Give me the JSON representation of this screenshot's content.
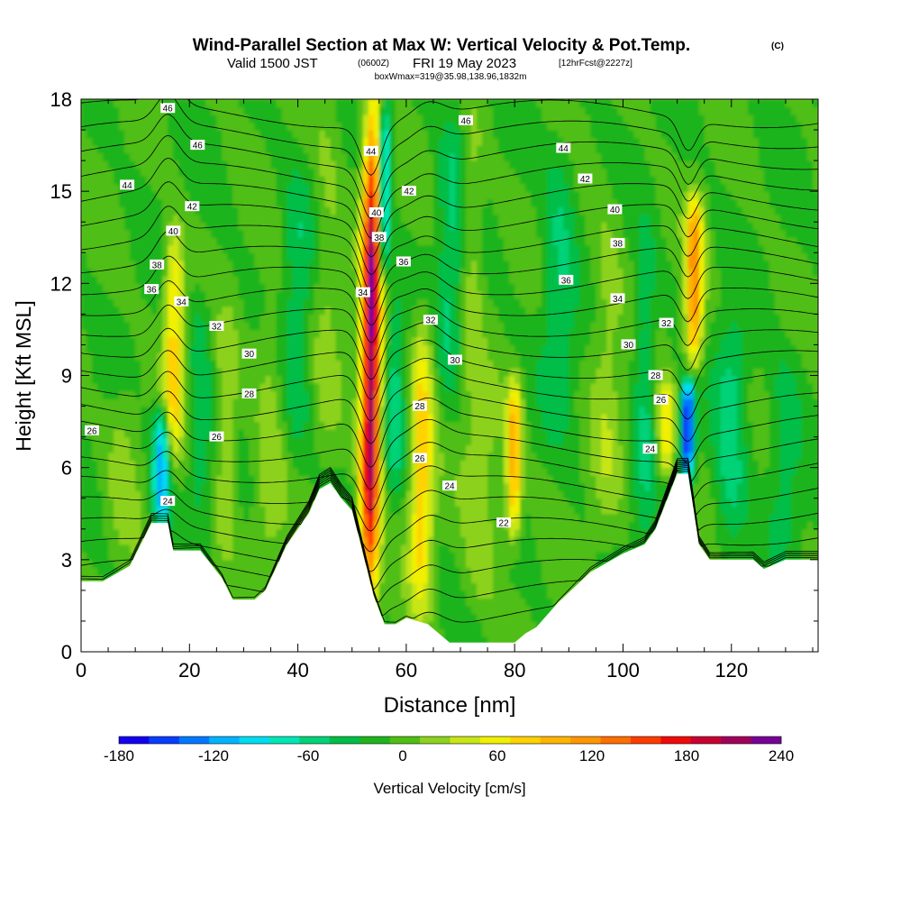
{
  "chart_data": {
    "type": "heatmap",
    "title": "Wind-Parallel Section at Max W: Vertical Velocity & Pot.Temp.",
    "title_suffix": "(C)",
    "subtitle": {
      "valid": "Valid 1500 JST",
      "utc": "(0600Z)",
      "date": "FRI 19 May 2023",
      "forecast": "[12hrFcst@2227z]"
    },
    "box_info": "boxWmax=319@35.98,138.96,1832m",
    "xlabel": "Distance [nm]",
    "ylabel": "Height [Kft MSL]",
    "xlim": [
      0,
      136
    ],
    "ylim": [
      0,
      18
    ],
    "x_ticks": [
      "0",
      "20",
      "40",
      "60",
      "80",
      "100",
      "120"
    ],
    "y_ticks": [
      "0",
      "3",
      "6",
      "9",
      "12",
      "15",
      "18"
    ],
    "colorbar": {
      "label": "Vertical Velocity [cm/s]",
      "ticks": [
        "-180",
        "-120",
        "-60",
        "0",
        "60",
        "120",
        "180",
        "240"
      ],
      "min": -180,
      "max": 240,
      "step": 20,
      "colors": [
        "#1400f0",
        "#0a3cff",
        "#0078ff",
        "#00b4ff",
        "#00dcf0",
        "#00e6b4",
        "#00d278",
        "#00be46",
        "#1eb41e",
        "#50be14",
        "#8cd21e",
        "#c8e614",
        "#f0f000",
        "#ffd200",
        "#ffb400",
        "#ff9600",
        "#ff6e00",
        "#ff3c00",
        "#f00a0a",
        "#c80032",
        "#a0005a",
        "#780096"
      ]
    },
    "terrain_kft": [
      [
        0,
        2.3
      ],
      [
        4,
        2.3
      ],
      [
        9,
        2.8
      ],
      [
        13,
        4.2
      ],
      [
        16,
        4.2
      ],
      [
        17,
        3.3
      ],
      [
        22,
        3.3
      ],
      [
        26,
        2.4
      ],
      [
        28,
        1.7
      ],
      [
        32,
        1.7
      ],
      [
        34,
        2.0
      ],
      [
        38,
        3.5
      ],
      [
        42,
        4.5
      ],
      [
        44,
        5.3
      ],
      [
        46,
        5.5
      ],
      [
        48,
        5.0
      ],
      [
        50,
        4.6
      ],
      [
        52,
        3.2
      ],
      [
        54,
        1.8
      ],
      [
        56,
        0.9
      ],
      [
        58,
        0.9
      ],
      [
        60,
        1.1
      ],
      [
        62,
        1.0
      ],
      [
        64,
        0.9
      ],
      [
        66,
        0.6
      ],
      [
        68,
        0.3
      ],
      [
        72,
        0.3
      ],
      [
        76,
        0.3
      ],
      [
        80,
        0.3
      ],
      [
        82,
        0.6
      ],
      [
        84,
        0.8
      ],
      [
        88,
        1.6
      ],
      [
        94,
        2.6
      ],
      [
        100,
        3.2
      ],
      [
        104,
        3.5
      ],
      [
        106,
        4.0
      ],
      [
        110,
        5.8
      ],
      [
        112,
        5.8
      ],
      [
        114,
        3.5
      ],
      [
        116,
        3.0
      ],
      [
        124,
        3.0
      ],
      [
        126,
        2.7
      ],
      [
        130,
        3.0
      ],
      [
        136,
        3.0
      ]
    ],
    "velocity_features": [
      {
        "x": 53.5,
        "zmin": 1.5,
        "zmax": 18,
        "peak_cm_s": 240,
        "width_nm": 1.8
      },
      {
        "x": 55.5,
        "zmin": 12,
        "zmax": 18,
        "peak_cm_s": -130,
        "width_nm": 1.2
      },
      {
        "x": 17,
        "zmin": 6,
        "zmax": 14,
        "peak_cm_s": 90,
        "width_nm": 1.8
      },
      {
        "x": 15,
        "zmin": 4,
        "zmax": 8,
        "peak_cm_s": -120,
        "width_nm": 1.6
      },
      {
        "x": 63,
        "zmin": 1,
        "zmax": 11,
        "peak_cm_s": 90,
        "width_nm": 2.2
      },
      {
        "x": 80,
        "zmin": 3.5,
        "zmax": 9,
        "peak_cm_s": 110,
        "width_nm": 1.4
      },
      {
        "x": 113,
        "zmin": 9,
        "zmax": 15,
        "peak_cm_s": 130,
        "width_nm": 1.6
      },
      {
        "x": 112,
        "zmin": 5.5,
        "zmax": 9,
        "peak_cm_s": -170,
        "width_nm": 1.2
      },
      {
        "x": 108,
        "zmin": 5.5,
        "zmax": 9,
        "peak_cm_s": 80,
        "width_nm": 1.5
      },
      {
        "x": 27,
        "zmin": 3,
        "zmax": 11,
        "peak_cm_s": 40,
        "width_nm": 2.0
      },
      {
        "x": 35,
        "zmin": 2,
        "zmax": 12,
        "peak_cm_s": 30,
        "width_nm": 3.0
      },
      {
        "x": 74,
        "zmin": 1,
        "zmax": 9,
        "peak_cm_s": 35,
        "width_nm": 3.5
      },
      {
        "x": 97,
        "zmin": 3,
        "zmax": 15,
        "peak_cm_s": 30,
        "width_nm": 3.0
      },
      {
        "x": 8,
        "zmin": 3,
        "zmax": 9,
        "peak_cm_s": 25,
        "width_nm": 3.0
      },
      {
        "x": 45,
        "zmin": 6,
        "zmax": 18,
        "peak_cm_s": 25,
        "width_nm": 3.0
      },
      {
        "x": 72,
        "zmin": 8,
        "zmax": 18,
        "peak_cm_s": 30,
        "width_nm": 2.0
      },
      {
        "x": 120,
        "zmin": 3,
        "zmax": 11,
        "peak_cm_s": -50,
        "width_nm": 3.0
      },
      {
        "x": 58,
        "zmin": 5,
        "zmax": 12,
        "peak_cm_s": -45,
        "width_nm": 2.0
      },
      {
        "x": 68,
        "zmin": 8,
        "zmax": 18,
        "peak_cm_s": -40,
        "width_nm": 2.5
      },
      {
        "x": 88,
        "zmin": 7,
        "zmax": 17,
        "peak_cm_s": -40,
        "width_nm": 3.0
      },
      {
        "x": 22,
        "zmin": 4,
        "zmax": 12,
        "peak_cm_s": -35,
        "width_nm": 2.0
      },
      {
        "x": 40,
        "zmin": 6,
        "zmax": 16,
        "peak_cm_s": -35,
        "width_nm": 3.0
      },
      {
        "x": 104,
        "zmin": 3,
        "zmax": 14,
        "peak_cm_s": -40,
        "width_nm": 2.0
      },
      {
        "x": 130,
        "zmin": 3,
        "zmax": 10,
        "peak_cm_s": -30,
        "width_nm": 3.0
      }
    ],
    "isentrope_levels_c": [
      22,
      23,
      24,
      25,
      26,
      27,
      28,
      29,
      30,
      31,
      32,
      33,
      34,
      35,
      36,
      37,
      38,
      39,
      40,
      41,
      42,
      43,
      44,
      45,
      46
    ],
    "contour_labels": [
      {
        "text": "46",
        "x": 16,
        "y": 17.7
      },
      {
        "text": "46",
        "x": 21.5,
        "y": 16.5
      },
      {
        "text": "44",
        "x": 8.5,
        "y": 15.2
      },
      {
        "text": "42",
        "x": 20.5,
        "y": 14.5
      },
      {
        "text": "40",
        "x": 17,
        "y": 13.7
      },
      {
        "text": "38",
        "x": 14,
        "y": 12.6
      },
      {
        "text": "36",
        "x": 13,
        "y": 11.8
      },
      {
        "text": "34",
        "x": 18.5,
        "y": 11.4
      },
      {
        "text": "32",
        "x": 25,
        "y": 10.6
      },
      {
        "text": "30",
        "x": 31,
        "y": 9.7
      },
      {
        "text": "28",
        "x": 31,
        "y": 8.4
      },
      {
        "text": "26",
        "x": 2,
        "y": 7.2
      },
      {
        "text": "26",
        "x": 25,
        "y": 7.0
      },
      {
        "text": "24",
        "x": 16,
        "y": 4.9
      },
      {
        "text": "46",
        "x": 71,
        "y": 17.3
      },
      {
        "text": "44",
        "x": 53.5,
        "y": 16.3
      },
      {
        "text": "42",
        "x": 60.5,
        "y": 15.0
      },
      {
        "text": "40",
        "x": 54.5,
        "y": 14.3
      },
      {
        "text": "38",
        "x": 55,
        "y": 13.5
      },
      {
        "text": "36",
        "x": 59.5,
        "y": 12.7
      },
      {
        "text": "34",
        "x": 52,
        "y": 11.7
      },
      {
        "text": "32",
        "x": 64.5,
        "y": 10.8
      },
      {
        "text": "30",
        "x": 69,
        "y": 9.5
      },
      {
        "text": "28",
        "x": 62.5,
        "y": 8.0
      },
      {
        "text": "26",
        "x": 62.5,
        "y": 6.3
      },
      {
        "text": "24",
        "x": 68,
        "y": 5.4
      },
      {
        "text": "22",
        "x": 78,
        "y": 4.2
      },
      {
        "text": "44",
        "x": 89,
        "y": 16.4
      },
      {
        "text": "42",
        "x": 93,
        "y": 15.4
      },
      {
        "text": "40",
        "x": 98.5,
        "y": 14.4
      },
      {
        "text": "38",
        "x": 99,
        "y": 13.3
      },
      {
        "text": "36",
        "x": 89.5,
        "y": 12.1
      },
      {
        "text": "34",
        "x": 99,
        "y": 11.5
      },
      {
        "text": "32",
        "x": 108,
        "y": 10.7
      },
      {
        "text": "30",
        "x": 101,
        "y": 10.0
      },
      {
        "text": "28",
        "x": 106,
        "y": 9.0
      },
      {
        "text": "26",
        "x": 107,
        "y": 8.2
      },
      {
        "text": "24",
        "x": 105,
        "y": 6.6
      }
    ]
  }
}
